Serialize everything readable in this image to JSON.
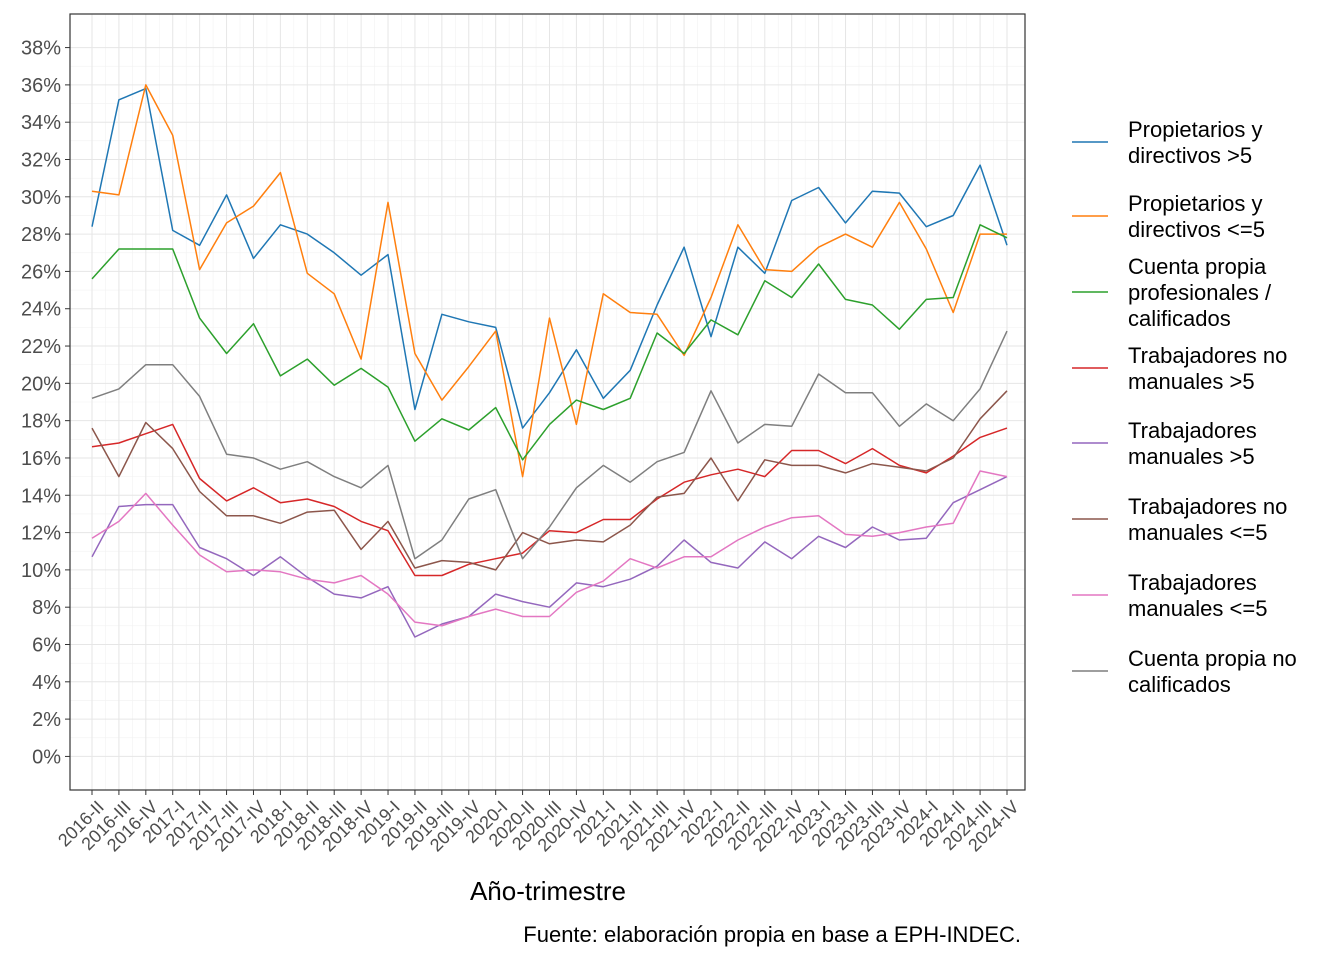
{
  "chart_data": {
    "type": "line",
    "title": "",
    "xlabel": "Año-trimestre",
    "ylabel": "",
    "caption": "Fuente: elaboración propia en base a EPH-INDEC.",
    "ylim": [
      -0.018,
      0.398
    ],
    "y_ticks": [
      0,
      0.02,
      0.04,
      0.06,
      0.08,
      0.1,
      0.12,
      0.14,
      0.16,
      0.18,
      0.2,
      0.22,
      0.24,
      0.26,
      0.28,
      0.3,
      0.32,
      0.34,
      0.36,
      0.38
    ],
    "y_format": "percent",
    "grid": true,
    "legend_position": "right",
    "categories": [
      "2016-II",
      "2016-III",
      "2016-IV",
      "2017-I",
      "2017-II",
      "2017-III",
      "2017-IV",
      "2018-I",
      "2018-II",
      "2018-III",
      "2018-IV",
      "2019-I",
      "2019-II",
      "2019-III",
      "2019-IV",
      "2020-I",
      "2020-II",
      "2020-III",
      "2020-IV",
      "2021-I",
      "2021-II",
      "2021-III",
      "2021-IV",
      "2022-I",
      "2022-II",
      "2022-III",
      "2022-IV",
      "2023-I",
      "2023-II",
      "2023-III",
      "2023-IV",
      "2024-I",
      "2024-II",
      "2024-III",
      "2024-IV"
    ],
    "series": [
      {
        "name": "Propietarios y directivos >5",
        "color": "#1f77b4",
        "values": [
          0.284,
          0.352,
          0.358,
          0.282,
          0.274,
          0.301,
          0.267,
          0.285,
          0.28,
          0.27,
          0.258,
          0.269,
          0.186,
          0.237,
          0.233,
          0.23,
          0.176,
          0.195,
          0.218,
          0.192,
          0.207,
          0.242,
          0.273,
          0.225,
          0.273,
          0.259,
          0.298,
          0.305,
          0.286,
          0.303,
          0.302,
          0.284,
          0.29,
          0.317,
          0.274
        ]
      },
      {
        "name": "Propietarios y directivos <=5",
        "color": "#ff7f0e",
        "values": [
          0.303,
          0.301,
          0.36,
          0.333,
          0.261,
          0.286,
          0.295,
          0.313,
          0.259,
          0.248,
          0.213,
          0.297,
          0.216,
          0.191,
          0.209,
          0.228,
          0.15,
          0.235,
          0.178,
          0.248,
          0.238,
          0.237,
          0.215,
          0.246,
          0.285,
          0.261,
          0.26,
          0.273,
          0.28,
          0.273,
          0.297,
          0.272,
          0.238,
          0.28,
          0.28
        ]
      },
      {
        "name": "Cuenta propia profesionales / calificados",
        "color": "#2ca02c",
        "values": [
          0.256,
          0.272,
          0.272,
          0.272,
          0.235,
          0.216,
          0.232,
          0.204,
          0.213,
          0.199,
          0.208,
          0.198,
          0.169,
          0.181,
          0.175,
          0.187,
          0.159,
          0.178,
          0.191,
          0.186,
          0.192,
          0.227,
          0.216,
          0.234,
          0.226,
          0.255,
          0.246,
          0.264,
          0.245,
          0.242,
          0.229,
          0.245,
          0.246,
          0.285,
          0.278
        ]
      },
      {
        "name": "Trabajadores no manuales >5",
        "color": "#d62728",
        "values": [
          0.166,
          0.168,
          0.173,
          0.178,
          0.149,
          0.137,
          0.144,
          0.136,
          0.138,
          0.134,
          0.126,
          0.121,
          0.097,
          0.097,
          0.103,
          0.106,
          0.109,
          0.121,
          0.12,
          0.127,
          0.127,
          0.138,
          0.147,
          0.151,
          0.154,
          0.15,
          0.164,
          0.164,
          0.157,
          0.165,
          0.156,
          0.152,
          0.161,
          0.171,
          0.176
        ]
      },
      {
        "name": "Trabajadores manuales >5",
        "color": "#9467bd",
        "values": [
          0.107,
          0.134,
          0.135,
          0.135,
          0.112,
          0.106,
          0.097,
          0.107,
          0.096,
          0.087,
          0.085,
          0.091,
          0.064,
          0.071,
          0.075,
          0.087,
          0.083,
          0.08,
          0.093,
          0.091,
          0.095,
          0.102,
          0.116,
          0.104,
          0.101,
          0.115,
          0.106,
          0.118,
          0.112,
          0.123,
          0.116,
          0.117,
          0.136,
          0.143,
          0.15
        ]
      },
      {
        "name": "Trabajadores no manuales <=5",
        "color": "#8c564b",
        "values": [
          0.176,
          0.15,
          0.179,
          0.165,
          0.142,
          0.129,
          0.129,
          0.125,
          0.131,
          0.132,
          0.111,
          0.126,
          0.101,
          0.105,
          0.104,
          0.1,
          0.12,
          0.114,
          0.116,
          0.115,
          0.124,
          0.139,
          0.141,
          0.16,
          0.137,
          0.159,
          0.156,
          0.156,
          0.152,
          0.157,
          0.155,
          0.153,
          0.16,
          0.181,
          0.196
        ]
      },
      {
        "name": "Trabajadores manuales <=5",
        "color": "#e377c2",
        "values": [
          0.117,
          0.126,
          0.141,
          0.124,
          0.108,
          0.099,
          0.1,
          0.099,
          0.095,
          0.093,
          0.097,
          0.087,
          0.072,
          0.07,
          0.075,
          0.079,
          0.075,
          0.075,
          0.088,
          0.094,
          0.106,
          0.101,
          0.107,
          0.107,
          0.116,
          0.123,
          0.128,
          0.129,
          0.119,
          0.118,
          0.12,
          0.123,
          0.125,
          0.153,
          0.15
        ]
      },
      {
        "name": "Cuenta propia no calificados",
        "color": "#7f7f7f",
        "values": [
          0.192,
          0.197,
          0.21,
          0.21,
          0.193,
          0.162,
          0.16,
          0.154,
          0.158,
          0.15,
          0.144,
          0.156,
          0.106,
          0.116,
          0.138,
          0.143,
          0.106,
          0.123,
          0.144,
          0.156,
          0.147,
          0.158,
          0.163,
          0.196,
          0.168,
          0.178,
          0.177,
          0.205,
          0.195,
          0.195,
          0.177,
          0.189,
          0.18,
          0.197,
          0.228
        ]
      }
    ]
  },
  "legend": {
    "items": [
      {
        "lines": [
          "Propietarios y",
          "directivos >5"
        ]
      },
      {
        "lines": [
          "Propietarios y",
          "directivos <=5"
        ]
      },
      {
        "lines": [
          "Cuenta propia",
          "profesionales /",
          "calificados"
        ]
      },
      {
        "lines": [
          "Trabajadores no",
          "manuales >5"
        ]
      },
      {
        "lines": [
          "Trabajadores",
          "manuales >5"
        ]
      },
      {
        "lines": [
          "Trabajadores no",
          "manuales <=5"
        ]
      },
      {
        "lines": [
          "Trabajadores",
          "manuales <=5"
        ]
      },
      {
        "lines": [
          "Cuenta propia no",
          "calificados"
        ]
      }
    ]
  }
}
